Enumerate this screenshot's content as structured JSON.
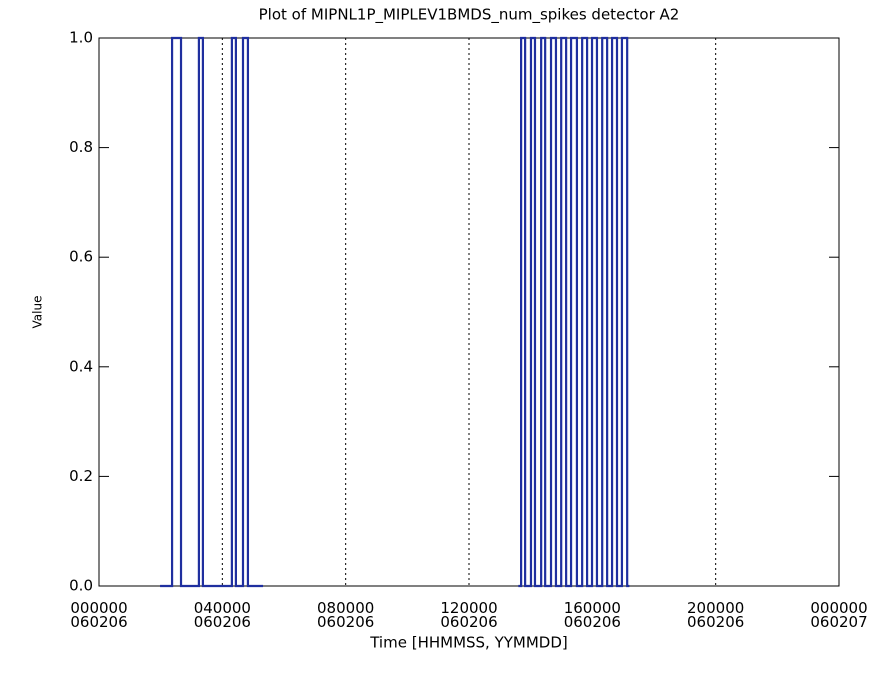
{
  "chart_data": {
    "type": "line",
    "title": "Plot of MIPNL1P_MIPLEV1BMDS_num_spikes detector A2",
    "x_label": "Time [HHMMSS, YYMMDD]",
    "y_label": "Value",
    "xlim": [
      0,
      24
    ],
    "xticks": [
      {
        "value": 0,
        "label": "000000\n060206"
      },
      {
        "value": 4,
        "label": "040000\n060206"
      },
      {
        "value": 8,
        "label": "080000\n060206"
      },
      {
        "value": 12,
        "label": "120000\n060206"
      },
      {
        "value": 16,
        "label": "160000\n060206"
      },
      {
        "value": 20,
        "label": "200000\n060206"
      },
      {
        "value": 24,
        "label": "000000\n060207"
      }
    ],
    "ylim": [
      0,
      1
    ],
    "yticks": [
      {
        "value": 0,
        "label": "0.0"
      },
      0.2,
      0.4,
      0.6,
      0.8,
      {
        "value": 1,
        "label": "1.0"
      }
    ],
    "grid": true,
    "series": [
      {
        "color": "#1f2f9f",
        "x": [
          1.98,
          2.37,
          2.37,
          2.66,
          2.66,
          3.24,
          3.24,
          3.37,
          3.37,
          4.31,
          4.31,
          4.44,
          4.44,
          4.67,
          4.67,
          4.83,
          4.83,
          5.32,
          null,
          13.6,
          13.69,
          13.69,
          13.82,
          13.82,
          14.01,
          14.01,
          14.14,
          14.14,
          14.34,
          14.34,
          14.47,
          14.47,
          14.66,
          14.66,
          14.82,
          14.82,
          14.99,
          14.99,
          15.15,
          15.15,
          15.31,
          15.31,
          15.5,
          15.5,
          15.67,
          15.67,
          15.83,
          15.83,
          15.99,
          15.99,
          16.15,
          16.15,
          16.32,
          16.32,
          16.48,
          16.48,
          16.64,
          16.64,
          16.8,
          16.8,
          16.96,
          16.96,
          17.13,
          17.13,
          17.2
        ],
        "values": [
          0,
          0,
          1,
          1,
          0,
          0,
          1,
          1,
          0,
          0,
          1,
          1,
          0,
          0,
          1,
          1,
          0,
          0,
          null,
          0,
          0,
          1,
          1,
          0,
          0,
          1,
          1,
          0,
          0,
          1,
          1,
          0,
          0,
          1,
          1,
          0,
          0,
          1,
          1,
          0,
          0,
          1,
          1,
          0,
          0,
          1,
          1,
          0,
          0,
          1,
          1,
          0,
          0,
          1,
          1,
          0,
          0,
          1,
          1,
          0,
          0,
          1,
          1,
          0,
          0
        ]
      }
    ]
  }
}
